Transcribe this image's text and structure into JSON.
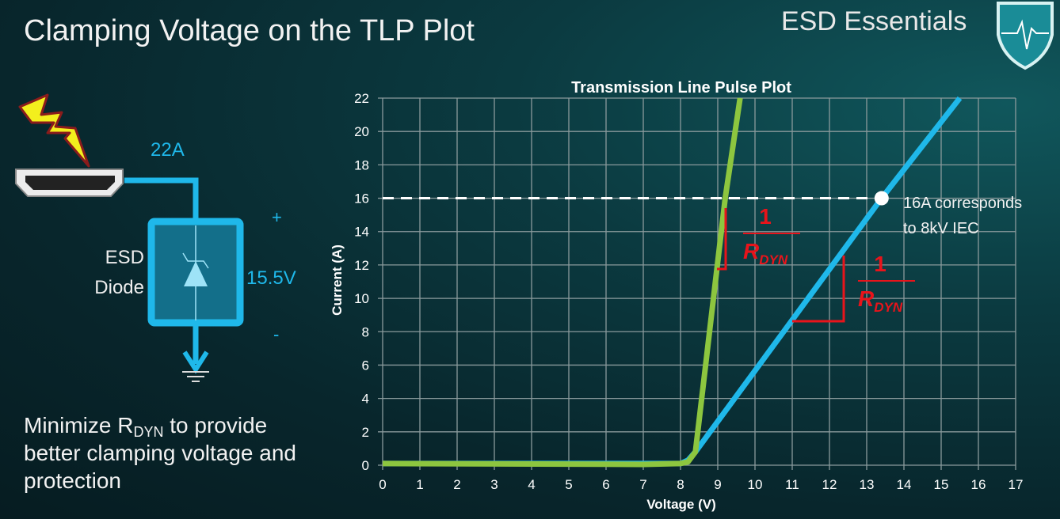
{
  "slide": {
    "title": "Clamping Voltage on the TLP Plot",
    "brand": "ESD Essentials",
    "bottom_text_prefix": "Minimize R",
    "bottom_text_sub": "DYN",
    "bottom_text_suffix": " to provide better clamping voltage and protection"
  },
  "circuit": {
    "current_label": "22A",
    "device_label_1": "ESD",
    "device_label_2": "Diode",
    "voltage_label": "15.5V",
    "plus": "+",
    "minus": "-",
    "wire_color": "#1fb8ea"
  },
  "chart_data": {
    "type": "line",
    "title": "Transmission Line Pulse Plot",
    "xlabel": "Voltage (V)",
    "ylabel": "Current (A)",
    "xlim": [
      0,
      17
    ],
    "ylim": [
      0,
      22
    ],
    "xticks": [
      0,
      1,
      2,
      3,
      4,
      5,
      6,
      7,
      8,
      9,
      10,
      11,
      12,
      13,
      14,
      15,
      16,
      17
    ],
    "yticks": [
      0,
      2,
      4,
      6,
      8,
      10,
      12,
      14,
      16,
      18,
      20,
      22
    ],
    "grid": true,
    "series": [
      {
        "color": "#1fb8ea",
        "x": [
          0,
          8,
          8.2,
          8.4,
          13.4,
          15.5
        ],
        "y": [
          0.1,
          0.1,
          0.3,
          0.8,
          16,
          22
        ]
      },
      {
        "color": "#8dc63f",
        "x": [
          0,
          7,
          8,
          8.2,
          8.4,
          9.2,
          9.6
        ],
        "y": [
          0.1,
          0.05,
          0.1,
          0.2,
          0.8,
          16,
          22
        ]
      }
    ],
    "reference_line": {
      "y": 16,
      "style": "dashed",
      "color": "#ffffff"
    },
    "marker": {
      "x": 13.4,
      "y": 16,
      "color": "#ffffff"
    },
    "annotations": {
      "marker_text_1": "16A corresponds",
      "marker_text_2": "to 8kV IEC",
      "slope_numerator": "1",
      "slope_denominator": "R",
      "slope_denominator_sub": "DYN",
      "slope_color": "#e8141b"
    }
  }
}
